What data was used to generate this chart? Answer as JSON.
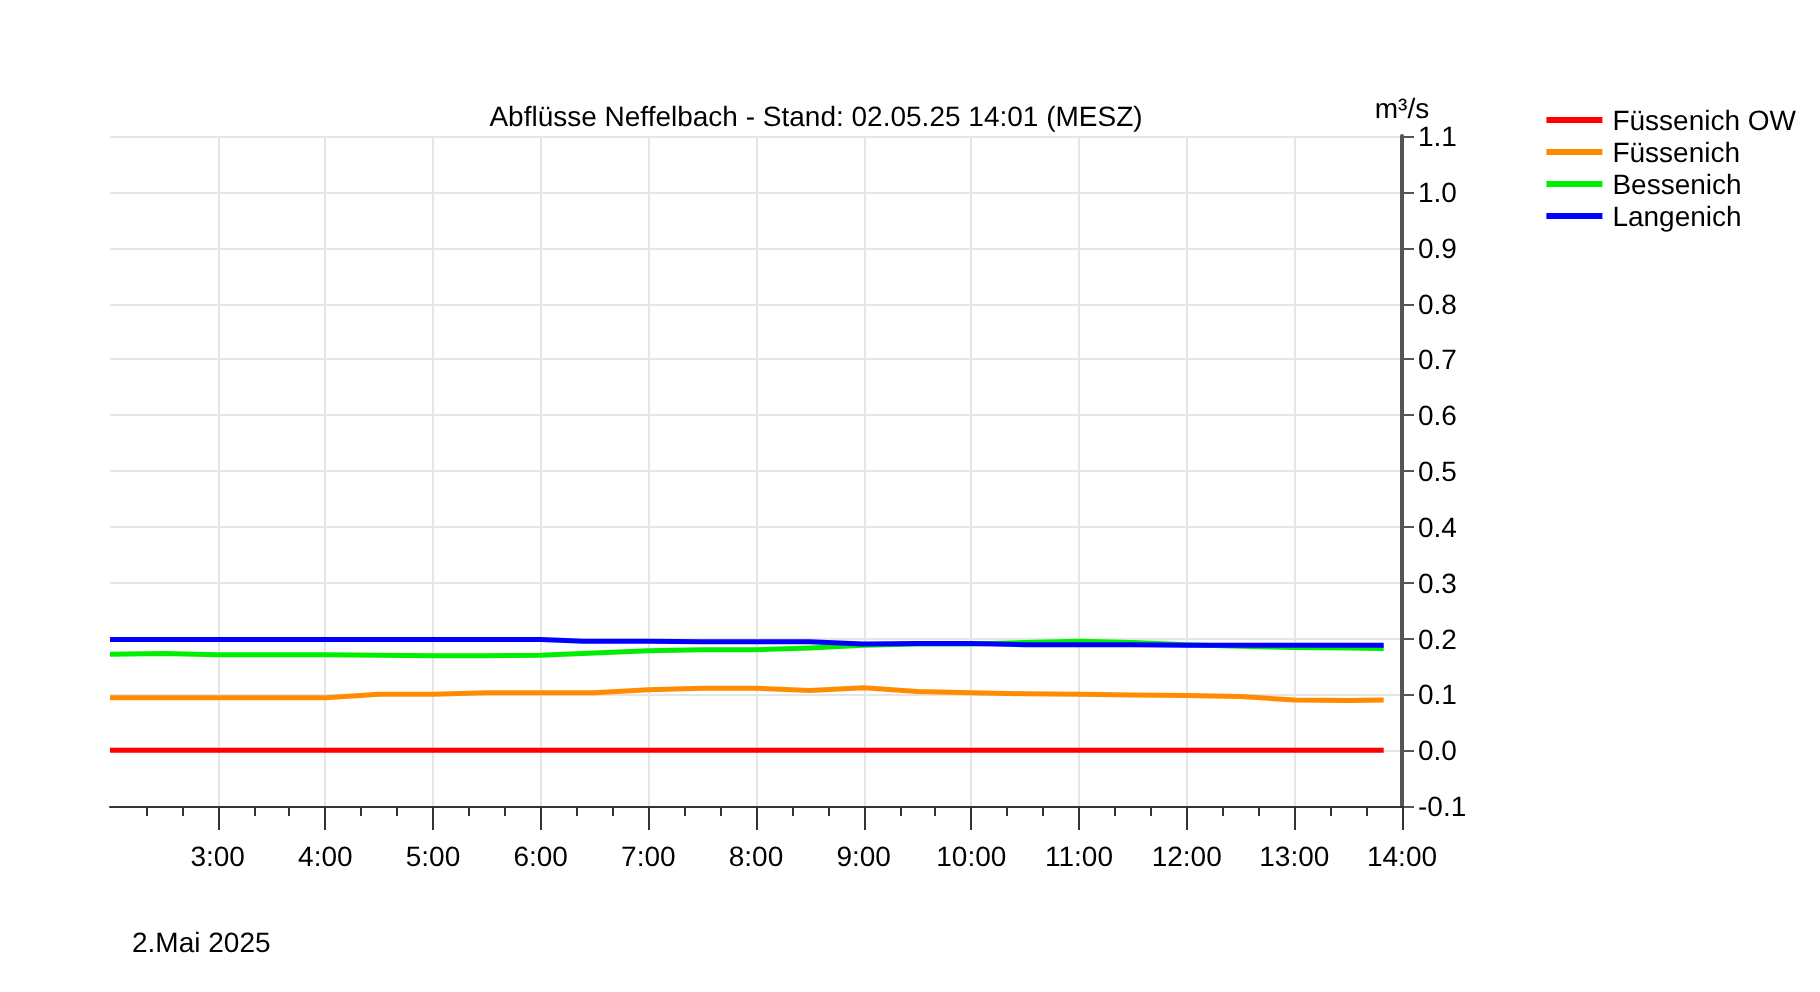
{
  "chart_data": {
    "type": "line",
    "title": "Abflüsse Neffelbach - Stand: 02.05.25 14:01 (MESZ)",
    "ylabel": "m³/s",
    "annotations": [
      "2.Mai 2025"
    ],
    "xlim": [
      2,
      14
    ],
    "xticks": [
      {
        "value": 3,
        "label": "3:00"
      },
      {
        "value": 4,
        "label": "4:00"
      },
      {
        "value": 5,
        "label": "5:00"
      },
      {
        "value": 6,
        "label": "6:00"
      },
      {
        "value": 7,
        "label": "7:00"
      },
      {
        "value": 8,
        "label": "8:00"
      },
      {
        "value": 9,
        "label": "9:00"
      },
      {
        "value": 10,
        "label": "10:00"
      },
      {
        "value": 11,
        "label": "11:00"
      },
      {
        "value": 12,
        "label": "12:00"
      },
      {
        "value": 13,
        "label": "13:00"
      },
      {
        "value": 14,
        "label": "14:00"
      }
    ],
    "ylim": [
      -0.1,
      1.1
    ],
    "yticks": [
      {
        "value": -0.1,
        "label": "-0.1"
      },
      {
        "value": 0,
        "label": "0.0"
      },
      {
        "value": 0.1,
        "label": "0.1"
      },
      {
        "value": 0.2,
        "label": "0.2"
      },
      {
        "value": 0.3,
        "label": "0.3"
      },
      {
        "value": 0.4,
        "label": "0.4"
      },
      {
        "value": 0.5,
        "label": "0.5"
      },
      {
        "value": 0.6,
        "label": "0.6"
      },
      {
        "value": 0.7,
        "label": "0.7"
      },
      {
        "value": 0.8,
        "label": "0.8"
      },
      {
        "value": 0.9,
        "label": "0.9"
      },
      {
        "value": 1.0,
        "label": "1.0"
      },
      {
        "value": 1.1,
        "label": "1.1"
      }
    ],
    "grid": true,
    "legend": "top right",
    "marker": "none",
    "line_style": "solid",
    "series": [
      {
        "name": "Füssenich OW",
        "color": "#ff0000",
        "x": [
          2,
          4,
          6,
          8,
          10,
          12,
          13.83
        ],
        "values": [
          0,
          0,
          0,
          0,
          0,
          0,
          0
        ]
      },
      {
        "name": "Füssenich",
        "color": "#ff8c00",
        "x": [
          2,
          3,
          4,
          4.5,
          5,
          5.5,
          6,
          6.5,
          7,
          7.5,
          8,
          8.5,
          9,
          9.5,
          10,
          10.5,
          11,
          11.5,
          12,
          12.5,
          13,
          13.5,
          13.83
        ],
        "values": [
          0.094,
          0.094,
          0.094,
          0.1,
          0.1,
          0.103,
          0.103,
          0.103,
          0.108,
          0.111,
          0.111,
          0.107,
          0.112,
          0.105,
          0.103,
          0.101,
          0.1,
          0.099,
          0.098,
          0.096,
          0.09,
          0.089,
          0.09
        ]
      },
      {
        "name": "Bessenich",
        "color": "#00ee00",
        "x": [
          2,
          2.5,
          3,
          4,
          5,
          5.5,
          6,
          6.5,
          7,
          7.5,
          8,
          8.5,
          9,
          9.5,
          10,
          10.5,
          11,
          11.5,
          12,
          12.5,
          13,
          13.5,
          13.83
        ],
        "values": [
          0.172,
          0.173,
          0.171,
          0.171,
          0.169,
          0.169,
          0.17,
          0.174,
          0.178,
          0.18,
          0.18,
          0.183,
          0.188,
          0.19,
          0.19,
          0.193,
          0.195,
          0.193,
          0.189,
          0.186,
          0.184,
          0.183,
          0.182
        ]
      },
      {
        "name": "Langenich",
        "color": "#0000ff",
        "x": [
          2,
          3,
          4,
          5,
          6,
          6.4,
          7,
          7.5,
          8,
          8.5,
          9,
          9.5,
          10,
          10.5,
          11,
          11.5,
          12,
          12.5,
          13,
          13.5,
          13.83
        ],
        "values": [
          0.198,
          0.198,
          0.198,
          0.198,
          0.198,
          0.195,
          0.195,
          0.194,
          0.194,
          0.194,
          0.19,
          0.191,
          0.191,
          0.189,
          0.189,
          0.189,
          0.188,
          0.188,
          0.188,
          0.188,
          0.188
        ]
      }
    ]
  }
}
